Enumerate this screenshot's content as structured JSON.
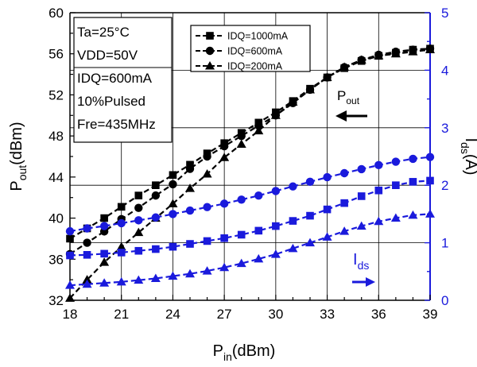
{
  "chart_data": {
    "type": "line",
    "xlabel": {
      "main": "P",
      "sub": "in",
      "unit": "(dBm)"
    },
    "ylabel_left": {
      "main": "P",
      "sub": "out",
      "unit": "(dBm)"
    },
    "ylabel_right": {
      "main": "I",
      "sub": "ds",
      "unit": "(A)"
    },
    "xlim": [
      18,
      39
    ],
    "ylim_left": [
      32,
      60
    ],
    "ylim_right": [
      0,
      5
    ],
    "x_ticks": [
      18,
      21,
      24,
      27,
      30,
      33,
      36,
      39
    ],
    "y_left_ticks": [
      32,
      36,
      40,
      44,
      48,
      52,
      56,
      60
    ],
    "y_right_ticks": [
      0,
      1,
      2,
      3,
      4,
      5
    ],
    "grid": true,
    "conditions": [
      "Ta=25°C",
      "VDD=50V",
      "IDQ=600mA",
      "10%Pulsed",
      "Fre=435MHz"
    ],
    "annotations": {
      "pout": {
        "main": "P",
        "sub": "out"
      },
      "ids": {
        "main": "I",
        "sub": "ds"
      }
    },
    "legend": {
      "position": "top-center"
    },
    "x": [
      18,
      19,
      20,
      21,
      22,
      23,
      24,
      25,
      26,
      27,
      28,
      29,
      30,
      31,
      32,
      33,
      34,
      35,
      36,
      37,
      38,
      39
    ],
    "series": [
      {
        "name": "IDQ=1000mA",
        "axis": "left",
        "marker": "square",
        "color": "#000000",
        "values": [
          38.0,
          39.0,
          40.0,
          41.1,
          42.2,
          43.2,
          44.2,
          45.2,
          46.3,
          47.3,
          48.3,
          49.3,
          50.3,
          51.4,
          52.6,
          53.7,
          54.6,
          55.3,
          55.8,
          56.1,
          56.4,
          56.5
        ]
      },
      {
        "name": "IDQ=600mA",
        "axis": "left",
        "marker": "circle",
        "color": "#000000",
        "values": [
          36.5,
          37.6,
          38.7,
          39.9,
          41.0,
          42.2,
          43.3,
          44.8,
          46.0,
          47.0,
          48.0,
          49.0,
          50.0,
          51.2,
          52.5,
          53.7,
          54.7,
          55.4,
          55.9,
          56.2,
          56.4,
          56.5
        ]
      },
      {
        "name": "IDQ=200mA",
        "axis": "left",
        "marker": "triangle",
        "color": "#000000",
        "values": [
          32.2,
          34.0,
          35.7,
          37.2,
          38.6,
          40.0,
          41.4,
          42.9,
          44.3,
          45.9,
          47.2,
          48.5,
          50.0,
          51.3,
          52.5,
          53.7,
          54.7,
          55.4,
          55.8,
          56.0,
          56.2,
          56.4
        ]
      },
      {
        "name": "IDQ=1000mA",
        "axis": "right",
        "marker": "square",
        "color": "#1a1adc",
        "values": [
          0.78,
          0.79,
          0.81,
          0.83,
          0.86,
          0.89,
          0.93,
          0.98,
          1.03,
          1.08,
          1.14,
          1.21,
          1.29,
          1.38,
          1.47,
          1.58,
          1.69,
          1.81,
          1.91,
          2.0,
          2.06,
          2.08
        ]
      },
      {
        "name": "IDQ=600mA",
        "axis": "right",
        "marker": "circle",
        "color": "#1a1adc",
        "values": [
          1.2,
          1.25,
          1.29,
          1.34,
          1.39,
          1.44,
          1.5,
          1.56,
          1.62,
          1.68,
          1.75,
          1.82,
          1.9,
          1.98,
          2.06,
          2.14,
          2.21,
          2.28,
          2.35,
          2.41,
          2.46,
          2.49
        ]
      },
      {
        "name": "IDQ=200mA",
        "axis": "right",
        "marker": "triangle",
        "color": "#1a1adc",
        "values": [
          0.26,
          0.28,
          0.3,
          0.32,
          0.35,
          0.38,
          0.42,
          0.46,
          0.51,
          0.57,
          0.64,
          0.72,
          0.8,
          0.9,
          1.0,
          1.1,
          1.2,
          1.29,
          1.37,
          1.43,
          1.48,
          1.5
        ]
      }
    ]
  }
}
